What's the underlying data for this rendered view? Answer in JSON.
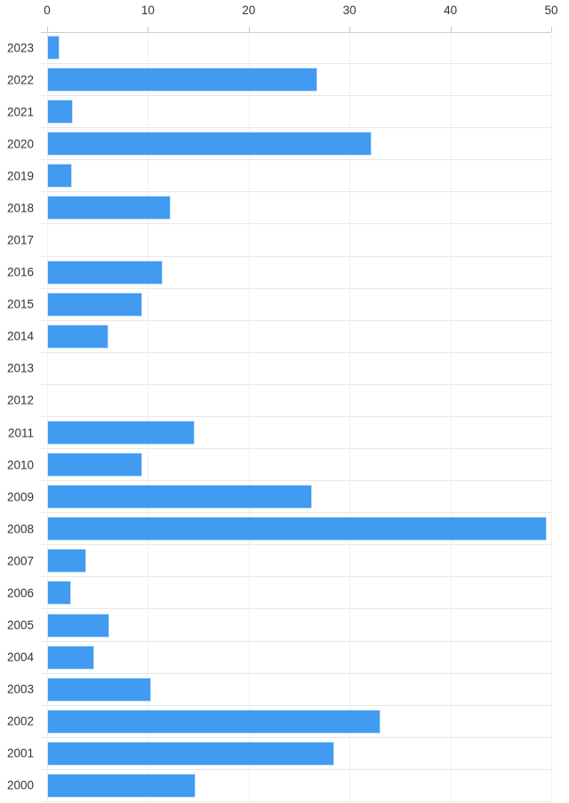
{
  "chart_data": {
    "type": "bar",
    "orientation": "horizontal",
    "categories": [
      "2023",
      "2022",
      "2021",
      "2020",
      "2019",
      "2018",
      "2017",
      "2016",
      "2015",
      "2014",
      "2013",
      "2012",
      "2011",
      "2010",
      "2009",
      "2008",
      "2007",
      "2006",
      "2005",
      "2004",
      "2003",
      "2002",
      "2001",
      "2000"
    ],
    "values": [
      1.2,
      26.8,
      2.6,
      32.2,
      2.5,
      12.3,
      0,
      11.5,
      9.4,
      6.1,
      0,
      0,
      14.6,
      9.4,
      26.3,
      49.6,
      3.9,
      2.4,
      6.2,
      4.7,
      10.3,
      33.1,
      28.5,
      14.7
    ],
    "x_ticks": [
      "0",
      "10",
      "20",
      "30",
      "40",
      "50"
    ],
    "x_tick_values": [
      0,
      10,
      20,
      30,
      40,
      50
    ],
    "xlim": [
      0,
      50
    ],
    "legend": "none",
    "grid": "on",
    "colors": {
      "bar": "#419bf0",
      "bar_edge": "#cfe4fa",
      "axis_line": "#cccccc",
      "row_gridline": "#e8e8e8",
      "vertical_gridline": "#f0f0f0",
      "tick_label": "#333333"
    }
  }
}
